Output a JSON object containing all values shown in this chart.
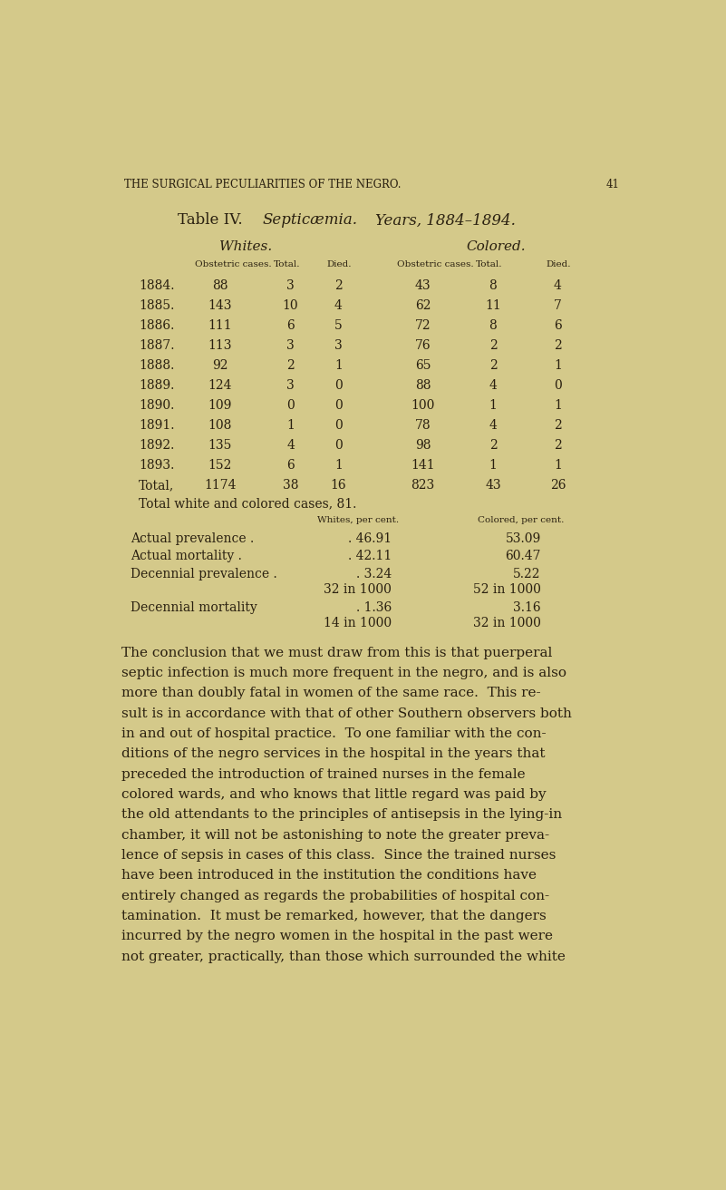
{
  "bg_color": "#d4c98a",
  "text_color": "#2a2010",
  "page_header": "THE SURGICAL PECULIARITIES OF THE NEGRO.",
  "page_number": "41",
  "table_title": "Table IV.",
  "table_subtitle_italic": "Septicæmia.",
  "table_subtitle_years_italic": "Years, 1884–1894.",
  "col_header_whites": "Whites.",
  "col_header_colored": "Colored.",
  "col_sub_headers": [
    "Obstetric cases.",
    "Total.",
    "Died.",
    "Obstetric cases.",
    "Total.",
    "Died."
  ],
  "table_rows": [
    [
      "1884.",
      "88",
      "3",
      "2",
      "43",
      "8",
      "4"
    ],
    [
      "1885.",
      "143",
      "10",
      "4",
      "62",
      "11",
      "7"
    ],
    [
      "1886.",
      "111",
      "6",
      "5",
      "72",
      "8",
      "6"
    ],
    [
      "1887.",
      "113",
      "3",
      "3",
      "76",
      "2",
      "2"
    ],
    [
      "1888.",
      "92",
      "2",
      "1",
      "65",
      "2",
      "1"
    ],
    [
      "1889.",
      "124",
      "3",
      "0",
      "88",
      "4",
      "0"
    ],
    [
      "1890.",
      "109",
      "0",
      "0",
      "100",
      "1",
      "1"
    ],
    [
      "1891.",
      "108",
      "1",
      "0",
      "78",
      "4",
      "2"
    ],
    [
      "1892.",
      "135",
      "4",
      "0",
      "98",
      "2",
      "2"
    ],
    [
      "1893.",
      "152",
      "6",
      "1",
      "141",
      "1",
      "1"
    ]
  ],
  "total_row": [
    "Total,",
    "1174",
    "38",
    "16",
    "823",
    "43",
    "26"
  ],
  "total_cases_line": "Total white and colored cases, 81.",
  "stats_header_whites": "Whites, per cent.",
  "stats_header_colored": "Colored, per cent.",
  "stat_row_labels": [
    "Actual prevalence .",
    "Actual mortality .",
    "Decennial prevalence ."
  ],
  "stat_white_vals": [
    ". 46.91",
    ". 42.11",
    ". 3.24"
  ],
  "stat_col_vals": [
    "53.09",
    "60.47",
    "5.22"
  ],
  "stat_sub1_white": "32 in 1000",
  "stat_sub1_colored": "52 in 1000",
  "stat_dec_mort_label": "Decennial mortality",
  "stat_dec_mort_dots": ".",
  "stat_dec_mort_white": ". 1.36",
  "stat_dec_mort_colored": "3.16",
  "stat_sub2_white": "14 in 1000",
  "stat_sub2_colored": "32 in 1000",
  "paragraph_lines": [
    "The conclusion that we must draw from this is that puerperal",
    "septic infection is much more frequent in the negro, and is also",
    "more than doubly fatal in women of the same race.  This re-",
    "sult is in accordance with that of other Southern observers both",
    "in and out of hospital practice.  To one familiar with the con-",
    "ditions of the negro services in the hospital in the years that",
    "preceded the introduction of trained nurses in the female",
    "colored wards, and who knows that little regard was paid by",
    "the old attendants to the principles of antisepsis in the lying-in",
    "chamber, it will not be astonishing to note the greater preva-",
    "lence of sepsis in cases of this class.  Since the trained nurses",
    "have been introduced in the institution the conditions have",
    "entirely changed as regards the probabilities of hospital con-",
    "tamination.  It must be remarked, however, that the dangers",
    "incurred by the negro women in the hospital in the past were",
    "not greater, practically, than those which surrounded the white"
  ]
}
